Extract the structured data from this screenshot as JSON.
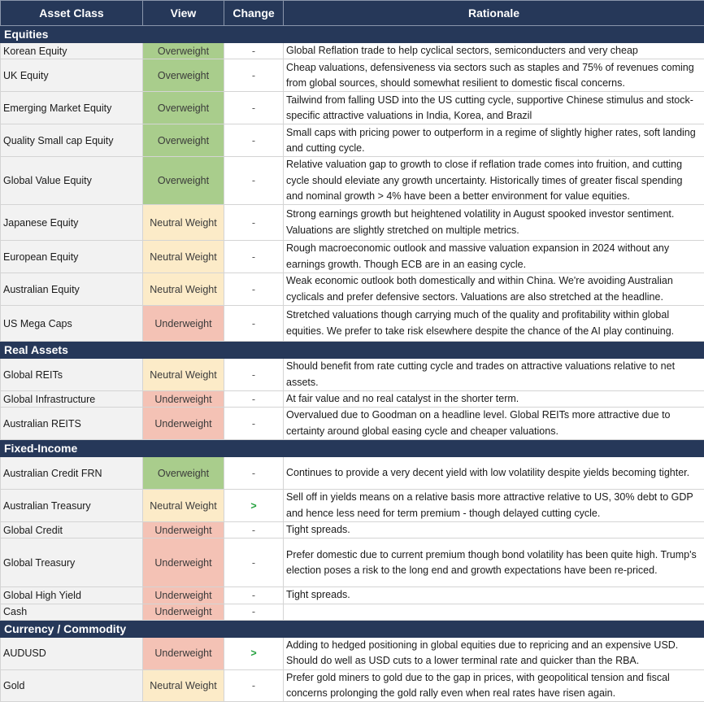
{
  "headers": {
    "asset_class": "Asset Class",
    "view": "View",
    "change": "Change",
    "rationale": "Rationale"
  },
  "colors": {
    "header_bg": "#263859",
    "overweight": "#a9cd8c",
    "neutral_weight": "#fcebc8",
    "underweight": "#f4c2b5",
    "change_up": "#24a13e"
  },
  "sections": [
    {
      "title": "Equities",
      "rows": [
        {
          "asset": "Korean Equity",
          "view": "Overweight",
          "change": "-",
          "rationale": "Global Reflation trade to help cyclical sectors, semiconducters and very cheap"
        },
        {
          "asset": "UK Equity",
          "view": "Overweight",
          "change": "-",
          "rationale": "Cheap valuations, defensiveness via sectors such as staples and 75% of revenues coming from global sources, should somewhat resilient to domestic fiscal concerns."
        },
        {
          "asset": "Emerging Market Equity",
          "view": "Overweight",
          "change": "-",
          "rationale": "Tailwind from falling USD into the US cutting cycle, supportive Chinese stimulus and stock-specific attractive valuations in India, Korea, and Brazil"
        },
        {
          "asset": "Quality Small cap Equity",
          "view": "Overweight",
          "change": "-",
          "rationale": "Small caps with pricing power to outperform in a regime of slightly higher rates, soft landing and cutting cycle."
        },
        {
          "asset": "Global Value Equity",
          "view": "Overweight",
          "change": "-",
          "rationale": "Relative valuation gap to growth to close if reflation trade comes into fruition, and cutting cycle should eleviate any growth uncertainty. Historically times of greater fiscal spending and nominal growth > 4% have been a better environment for value equities."
        },
        {
          "asset": "Japanese Equity",
          "view": "Neutral Weight",
          "change": "-",
          "rationale": "Strong earnings growth but heightened volatility in August spooked investor sentiment. Valuations are slightly stretched on multiple metrics."
        },
        {
          "asset": "European Equity",
          "view": "Neutral Weight",
          "change": "-",
          "rationale": "Rough macroeconomic outlook and massive valuation expansion in 2024 without any earnings growth. Though ECB are in an easing cycle."
        },
        {
          "asset": "Australian Equity",
          "view": "Neutral Weight",
          "change": "-",
          "rationale": "Weak economic outlook both domestically and within China. We're avoiding Australian cyclicals and prefer defensive sectors. Valuations are also stretched at the headline."
        },
        {
          "asset": "US Mega Caps",
          "view": "Underweight",
          "change": "-",
          "rationale": "Stretched valuations though carrying much of the quality and profitability within global equities. We prefer to take risk elsewhere despite the chance of the AI play continuing."
        }
      ]
    },
    {
      "title": "Real Assets",
      "rows": [
        {
          "asset": "Global REITs",
          "view": "Neutral Weight",
          "change": "-",
          "rationale": "Should benefit from rate cutting cycle and trades on attractive valuations relative to net assets."
        },
        {
          "asset": "Global Infrastructure",
          "view": "Underweight",
          "change": "-",
          "rationale": "At fair value and no real catalyst in the shorter term."
        },
        {
          "asset": "Australian REITS",
          "view": "Underweight",
          "change": "-",
          "rationale": "Overvalued due to Goodman on a headline level. Global REITs more attractive due to certainty around global easing cycle and cheaper valuations."
        }
      ]
    },
    {
      "title": "Fixed-Income",
      "rows": [
        {
          "asset": "Australian Credit FRN",
          "view": "Overweight",
          "change": "-",
          "rationale": "Continues to provide a very decent yield with low volatility despite yields becoming tighter."
        },
        {
          "asset": "Australian Treasury",
          "view": "Neutral Weight",
          "change": ">",
          "rationale": "Sell off in yields means on a relative basis more attractive relative to US, 30% debt to GDP and hence less need for term premium - though delayed cutting cycle."
        },
        {
          "asset": "Global Credit",
          "view": "Underweight",
          "change": "-",
          "rationale": "Tight spreads."
        },
        {
          "asset": "Global Treasury",
          "view": "Underweight",
          "change": "-",
          "rationale": "Prefer domestic due to current premium though bond volatility has been quite high. Trump's election poses a risk to the long end and growth expectations have been re-priced."
        },
        {
          "asset": "Global High Yield",
          "view": "Underweight",
          "change": "-",
          "rationale": "Tight spreads."
        },
        {
          "asset": "Cash",
          "view": "Underweight",
          "change": "-",
          "rationale": ""
        }
      ]
    },
    {
      "title": "Currency / Commodity",
      "rows": [
        {
          "asset": "AUDUSD",
          "view": "Underweight",
          "change": ">",
          "rationale": "Adding to hedged positioning in global equities due to repricing and an expensive USD. Should do well as USD cuts to a lower terminal rate and quicker than the RBA."
        },
        {
          "asset": "Gold",
          "view": "Neutral Weight",
          "change": "-",
          "rationale": "Prefer gold miners to gold due to the gap in prices, with geopolitical tension and fiscal concerns prolonging the gold rally even when real rates have risen again."
        }
      ]
    }
  ]
}
